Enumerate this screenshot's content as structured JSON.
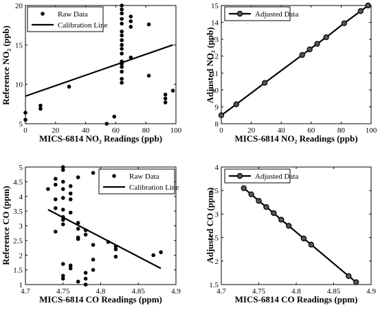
{
  "chart_data": [
    {
      "type": "scatter",
      "xlabel": "MICS-6814 NO₂ Readings (ppb)",
      "ylabel": "Reference NO₂ (ppb)",
      "xlim": [
        0,
        100
      ],
      "ylim": [
        5,
        20
      ],
      "xticks": [
        0,
        20,
        40,
        60,
        80,
        100
      ],
      "yticks": [
        5,
        10,
        15,
        20
      ],
      "legend_position": "top-left",
      "series": [
        {
          "name": "Raw Data",
          "kind": "scatter",
          "points": [
            [
              0,
              6.4
            ],
            [
              0,
              5.5
            ],
            [
              10,
              7.3
            ],
            [
              10,
              6.9
            ],
            [
              29,
              9.7
            ],
            [
              54,
              5.0
            ],
            [
              59,
              5.9
            ],
            [
              64,
              20.0
            ],
            [
              64,
              19.5
            ],
            [
              64,
              19.0
            ],
            [
              64,
              18.3
            ],
            [
              64,
              17.7
            ],
            [
              64,
              16.7
            ],
            [
              64,
              16.2
            ],
            [
              64,
              15.6
            ],
            [
              64,
              15.0
            ],
            [
              64,
              14.5
            ],
            [
              64,
              13.9
            ],
            [
              64,
              12.9
            ],
            [
              64,
              12.6
            ],
            [
              64,
              12.2
            ],
            [
              64,
              11.6
            ],
            [
              64,
              10.7
            ],
            [
              64,
              10.2
            ],
            [
              70,
              18.6
            ],
            [
              70,
              18.0
            ],
            [
              70,
              17.3
            ],
            [
              70,
              13.4
            ],
            [
              82,
              17.6
            ],
            [
              82,
              11.1
            ],
            [
              93,
              8.7
            ],
            [
              93,
              8.2
            ],
            [
              93,
              7.7
            ],
            [
              98,
              9.2
            ]
          ]
        },
        {
          "name": "Calibration Line",
          "kind": "line",
          "points": [
            [
              0,
              8.5
            ],
            [
              98,
              15.0
            ]
          ]
        }
      ]
    },
    {
      "type": "line",
      "xlabel": "MICS-6814 NO₂ Readings (ppb)",
      "ylabel": "Adjusted NO₂ (ppb)",
      "xlim": [
        0,
        100
      ],
      "ylim": [
        8,
        15
      ],
      "xticks": [
        0,
        20,
        40,
        60,
        80,
        100
      ],
      "yticks": [
        8,
        9,
        10,
        11,
        12,
        13,
        14,
        15
      ],
      "legend_position": "top-left",
      "series": [
        {
          "name": "Adjusted Data",
          "kind": "line-marker",
          "points": [
            [
              0,
              8.5
            ],
            [
              10,
              9.15
            ],
            [
              29,
              10.42
            ],
            [
              54,
              12.07
            ],
            [
              59,
              12.4
            ],
            [
              64,
              12.73
            ],
            [
              70,
              13.12
            ],
            [
              82,
              13.95
            ],
            [
              93,
              14.67
            ],
            [
              98,
              15.0
            ]
          ]
        }
      ]
    },
    {
      "type": "scatter",
      "xlabel": "MICS-6814 CO Readings (ppm)",
      "ylabel": "Reference CO (ppm)",
      "xlim": [
        4.7,
        4.9
      ],
      "ylim": [
        1,
        5
      ],
      "xticks": [
        4.7,
        4.75,
        4.8,
        4.85,
        4.9
      ],
      "yticks": [
        1,
        1.5,
        2,
        2.5,
        3,
        3.5,
        4,
        4.5,
        5
      ],
      "legend_position": "top-right",
      "series": [
        {
          "name": "Raw Data",
          "kind": "scatter",
          "points": [
            [
              4.73,
              4.25
            ],
            [
              4.74,
              4.6
            ],
            [
              4.74,
              4.4
            ],
            [
              4.74,
              3.9
            ],
            [
              4.74,
              3.6
            ],
            [
              4.74,
              2.8
            ],
            [
              4.75,
              5.0
            ],
            [
              4.75,
              4.9
            ],
            [
              4.75,
              4.5
            ],
            [
              4.75,
              4.25
            ],
            [
              4.75,
              3.95
            ],
            [
              4.75,
              3.55
            ],
            [
              4.75,
              3.3
            ],
            [
              4.75,
              3.2
            ],
            [
              4.75,
              3.05
            ],
            [
              4.75,
              1.7
            ],
            [
              4.75,
              1.3
            ],
            [
              4.75,
              1.2
            ],
            [
              4.76,
              4.35
            ],
            [
              4.76,
              4.1
            ],
            [
              4.76,
              3.9
            ],
            [
              4.76,
              3.45
            ],
            [
              4.76,
              1.65
            ],
            [
              4.76,
              1.55
            ],
            [
              4.77,
              4.65
            ],
            [
              4.77,
              3.1
            ],
            [
              4.77,
              2.9
            ],
            [
              4.77,
              2.6
            ],
            [
              4.77,
              2.55
            ],
            [
              4.77,
              1.1
            ],
            [
              4.78,
              2.85
            ],
            [
              4.78,
              2.7
            ],
            [
              4.78,
              1.4
            ],
            [
              4.78,
              1.2
            ],
            [
              4.78,
              1.0
            ],
            [
              4.79,
              4.8
            ],
            [
              4.79,
              2.35
            ],
            [
              4.79,
              1.85
            ],
            [
              4.79,
              1.5
            ],
            [
              4.81,
              2.45
            ],
            [
              4.82,
              4.75
            ],
            [
              4.82,
              2.3
            ],
            [
              4.82,
              2.2
            ],
            [
              4.82,
              1.95
            ],
            [
              4.87,
              2.0
            ],
            [
              4.88,
              2.1
            ]
          ]
        },
        {
          "name": "Calibration Line",
          "kind": "line",
          "points": [
            [
              4.73,
              3.55
            ],
            [
              4.88,
              1.55
            ]
          ]
        }
      ]
    },
    {
      "type": "line",
      "xlabel": "MICS-6814 CO Readings (ppm)",
      "ylabel": "Adjusted CO (ppm)",
      "xlim": [
        4.7,
        4.9
      ],
      "ylim": [
        1.5,
        4
      ],
      "xticks": [
        4.7,
        4.75,
        4.8,
        4.85,
        4.9
      ],
      "yticks": [
        1.5,
        2,
        2.5,
        3,
        3.5,
        4
      ],
      "legend_position": "top-left",
      "series": [
        {
          "name": "Adjusted Data",
          "kind": "line-marker",
          "points": [
            [
              4.73,
              3.55
            ],
            [
              4.74,
              3.42
            ],
            [
              4.75,
              3.28
            ],
            [
              4.76,
              3.15
            ],
            [
              4.77,
              3.02
            ],
            [
              4.78,
              2.88
            ],
            [
              4.79,
              2.75
            ],
            [
              4.81,
              2.48
            ],
            [
              4.82,
              2.35
            ],
            [
              4.87,
              1.68
            ],
            [
              4.88,
              1.55
            ]
          ]
        }
      ]
    }
  ]
}
